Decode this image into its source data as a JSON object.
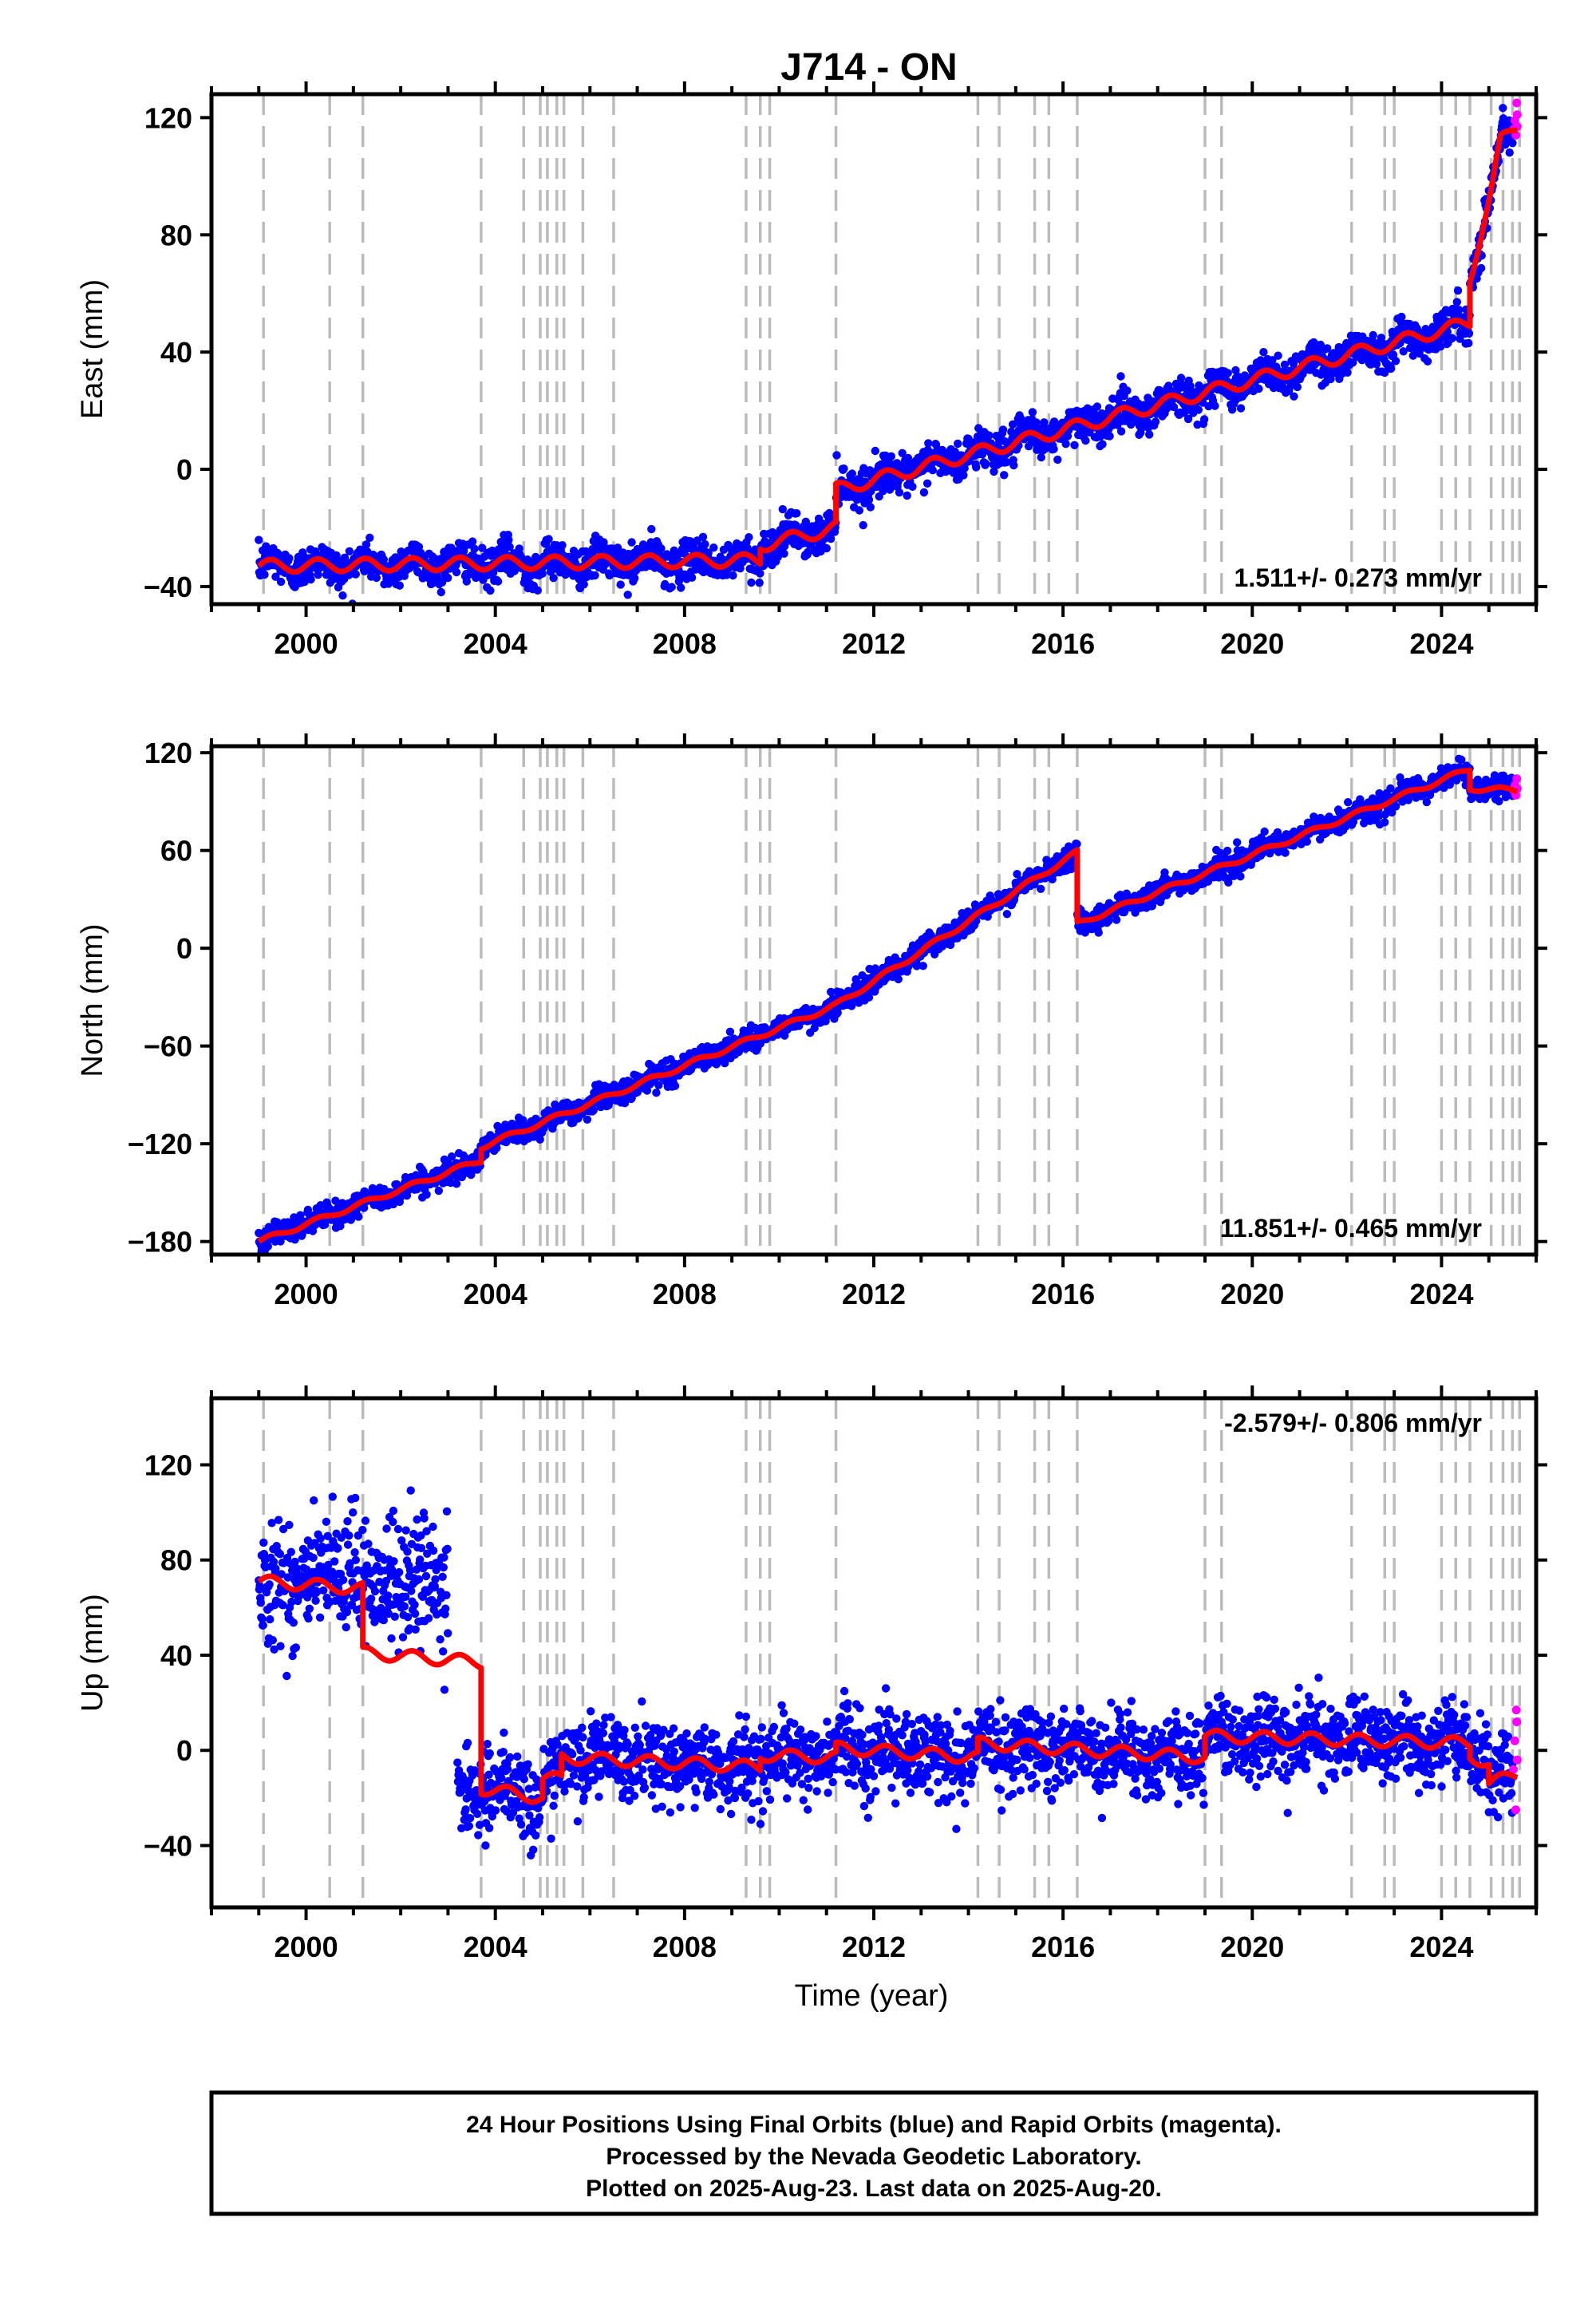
{
  "title": "J714 - ON",
  "xlabel": "Time (year)",
  "colors": {
    "final_orbits": "#0000ff",
    "rapid_orbits": "#ff00ff",
    "model": "#ff0000",
    "event_lines": "#bbbbbb",
    "frame": "#000000"
  },
  "footer": {
    "line1": "24 Hour Positions Using Final Orbits (blue) and Rapid Orbits (magenta).",
    "line2": "Processed by the Nevada Geodetic Laboratory.",
    "line3": "Plotted on 2025-Aug-23. Last data on 2025-Aug-20."
  },
  "chart_data": [
    {
      "type": "scatter",
      "name": "east",
      "ylabel": "East (mm)",
      "xlim": [
        1998.0,
        2026.0
      ],
      "ylim": [
        -46,
        128
      ],
      "xticks": [
        2000,
        2004,
        2008,
        2012,
        2016,
        2020,
        2024
      ],
      "xtick_labels": [
        "2000",
        "2004",
        "2008",
        "2012",
        "2016",
        "2020",
        "2024"
      ],
      "yticks": [
        -40,
        0,
        40,
        80,
        120
      ],
      "ytick_labels": [
        "−40",
        "0",
        "40",
        "80",
        "120"
      ],
      "rate_label": "1.511+/- 0.273 mm/yr",
      "rate_position": "bottom-right",
      "scatter_spread": 3.2,
      "annual_amplitude": 2.2,
      "model_series": {
        "name": "Model fit",
        "x": [
          1999.0,
          2009.6,
          2009.6,
          2011.2,
          2011.2,
          2024.6,
          2024.6,
          2025.05,
          2025.25,
          2025.6
        ],
        "y": [
          -33,
          -31,
          -26,
          -20,
          -7,
          50,
          65,
          95,
          112,
          117
        ]
      },
      "final_series": {
        "name": "Final Orbits",
        "x": [
          1999.0,
          2009.6,
          2009.6,
          2011.2,
          2011.2,
          2024.6,
          2024.6,
          2025.05,
          2025.25,
          2025.5
        ],
        "y": [
          -33,
          -31,
          -26,
          -20,
          -7,
          50,
          65,
          95,
          112,
          117
        ]
      },
      "rapid_series": {
        "name": "Rapid Orbits",
        "x": [
          2025.52,
          2025.55,
          2025.57,
          2025.59,
          2025.6,
          2025.6
        ],
        "y": [
          116,
          119,
          114,
          125,
          121,
          117
        ]
      }
    },
    {
      "type": "scatter",
      "name": "north",
      "ylabel": "North (mm)",
      "xlim": [
        1998.0,
        2026.0
      ],
      "ylim": [
        -188,
        124
      ],
      "xticks": [
        2000,
        2004,
        2008,
        2012,
        2016,
        2020,
        2024
      ],
      "xtick_labels": [
        "2000",
        "2004",
        "2008",
        "2012",
        "2016",
        "2020",
        "2024"
      ],
      "yticks": [
        -180,
        -120,
        -60,
        0,
        60,
        120
      ],
      "ytick_labels": [
        "−180",
        "−120",
        "−60",
        "0",
        "60",
        "120"
      ],
      "rate_label": "11.851+/- 0.465 mm/yr",
      "rate_position": "bottom-right",
      "scatter_spread": 3.5,
      "annual_amplitude": 1.5,
      "model_series": {
        "name": "Model fit",
        "x": [
          1999.0,
          2003.7,
          2003.7,
          2011.2,
          2016.3,
          2016.3,
          2024.6,
          2024.6,
          2025.6
        ],
        "y": [
          -180,
          -130,
          -122,
          -35,
          59,
          15,
          110,
          98,
          97
        ]
      },
      "final_series": {
        "name": "Final Orbits",
        "x": [
          1999.0,
          2003.7,
          2003.7,
          2011.2,
          2016.3,
          2016.3,
          2024.6,
          2024.6,
          2025.5
        ],
        "y": [
          -180,
          -130,
          -122,
          -35,
          59,
          15,
          110,
          98,
          97
        ]
      },
      "rapid_series": {
        "name": "Rapid Orbits",
        "x": [
          2025.52,
          2025.55,
          2025.57,
          2025.59,
          2025.6
        ],
        "y": [
          97,
          100,
          94,
          104,
          98
        ]
      }
    },
    {
      "type": "scatter",
      "name": "up",
      "ylabel": "Up (mm)",
      "xlim": [
        1998.0,
        2026.0
      ],
      "ylim": [
        -66,
        148
      ],
      "xticks": [
        2000,
        2004,
        2008,
        2012,
        2016,
        2020,
        2024
      ],
      "xtick_labels": [
        "2000",
        "2004",
        "2008",
        "2012",
        "2016",
        "2020",
        "2024"
      ],
      "yticks": [
        -40,
        0,
        40,
        80,
        120
      ],
      "ytick_labels": [
        "−40",
        "0",
        "40",
        "80",
        "120"
      ],
      "rate_label": "-2.579+/- 0.806 mm/yr",
      "rate_position": "top-right",
      "scatter_spread": 8,
      "annual_amplitude": 2.5,
      "model_series": {
        "name": "Model fit",
        "x": [
          1999.0,
          2001.2,
          2001.2,
          2003.7,
          2003.7,
          2005.0,
          2005.0,
          2005.4,
          2005.4,
          2009.6,
          2009.6,
          2011.2,
          2011.2,
          2014.2,
          2014.2,
          2019.0,
          2019.0,
          2024.6,
          2024.6,
          2025.0,
          2025.0,
          2025.6
        ],
        "y": [
          71,
          68,
          41,
          37,
          -16,
          -20,
          -12,
          -12,
          -3,
          -7,
          -2,
          -3,
          1,
          -3,
          3,
          -3,
          6,
          3,
          -2,
          -6,
          -14,
          -10
        ]
      },
      "final_series": {
        "name": "Final Orbits",
        "x": [
          1999.0,
          2001.2,
          2001.2,
          2003.0,
          2003.2,
          2003.7,
          2003.7,
          2005.0,
          2005.0,
          2005.4,
          2005.4,
          2009.6,
          2009.6,
          2011.2,
          2011.2,
          2014.2,
          2014.2,
          2019.0,
          2019.0,
          2024.6,
          2024.6,
          2025.0,
          2025.0,
          2025.5
        ],
        "y": [
          71,
          72,
          72,
          70,
          -18,
          -16,
          -16,
          -20,
          -12,
          -12,
          -3,
          -7,
          -2,
          -3,
          1,
          -3,
          3,
          -3,
          6,
          3,
          -2,
          -6,
          -14,
          -10
        ]
      },
      "rapid_series": {
        "name": "Rapid Orbits",
        "x": [
          2025.52,
          2025.55,
          2025.57,
          2025.58,
          2025.59,
          2025.6
        ],
        "y": [
          -8,
          4,
          -25,
          17,
          12,
          -4
        ]
      },
      "gaps": [
        [
          2003.0,
          2003.2
        ]
      ]
    }
  ],
  "event_lines": [
    1999.1,
    2000.5,
    2001.2,
    2003.7,
    2004.6,
    2004.95,
    2005.1,
    2005.3,
    2005.45,
    2005.85,
    2006.5,
    2009.3,
    2009.6,
    2009.8,
    2011.2,
    2014.2,
    2014.65,
    2015.4,
    2015.7,
    2016.3,
    2019.0,
    2019.35,
    2022.1,
    2022.8,
    2023.0,
    2024.0,
    2024.3,
    2024.6,
    2025.05,
    2025.3,
    2025.5,
    2025.65
  ]
}
